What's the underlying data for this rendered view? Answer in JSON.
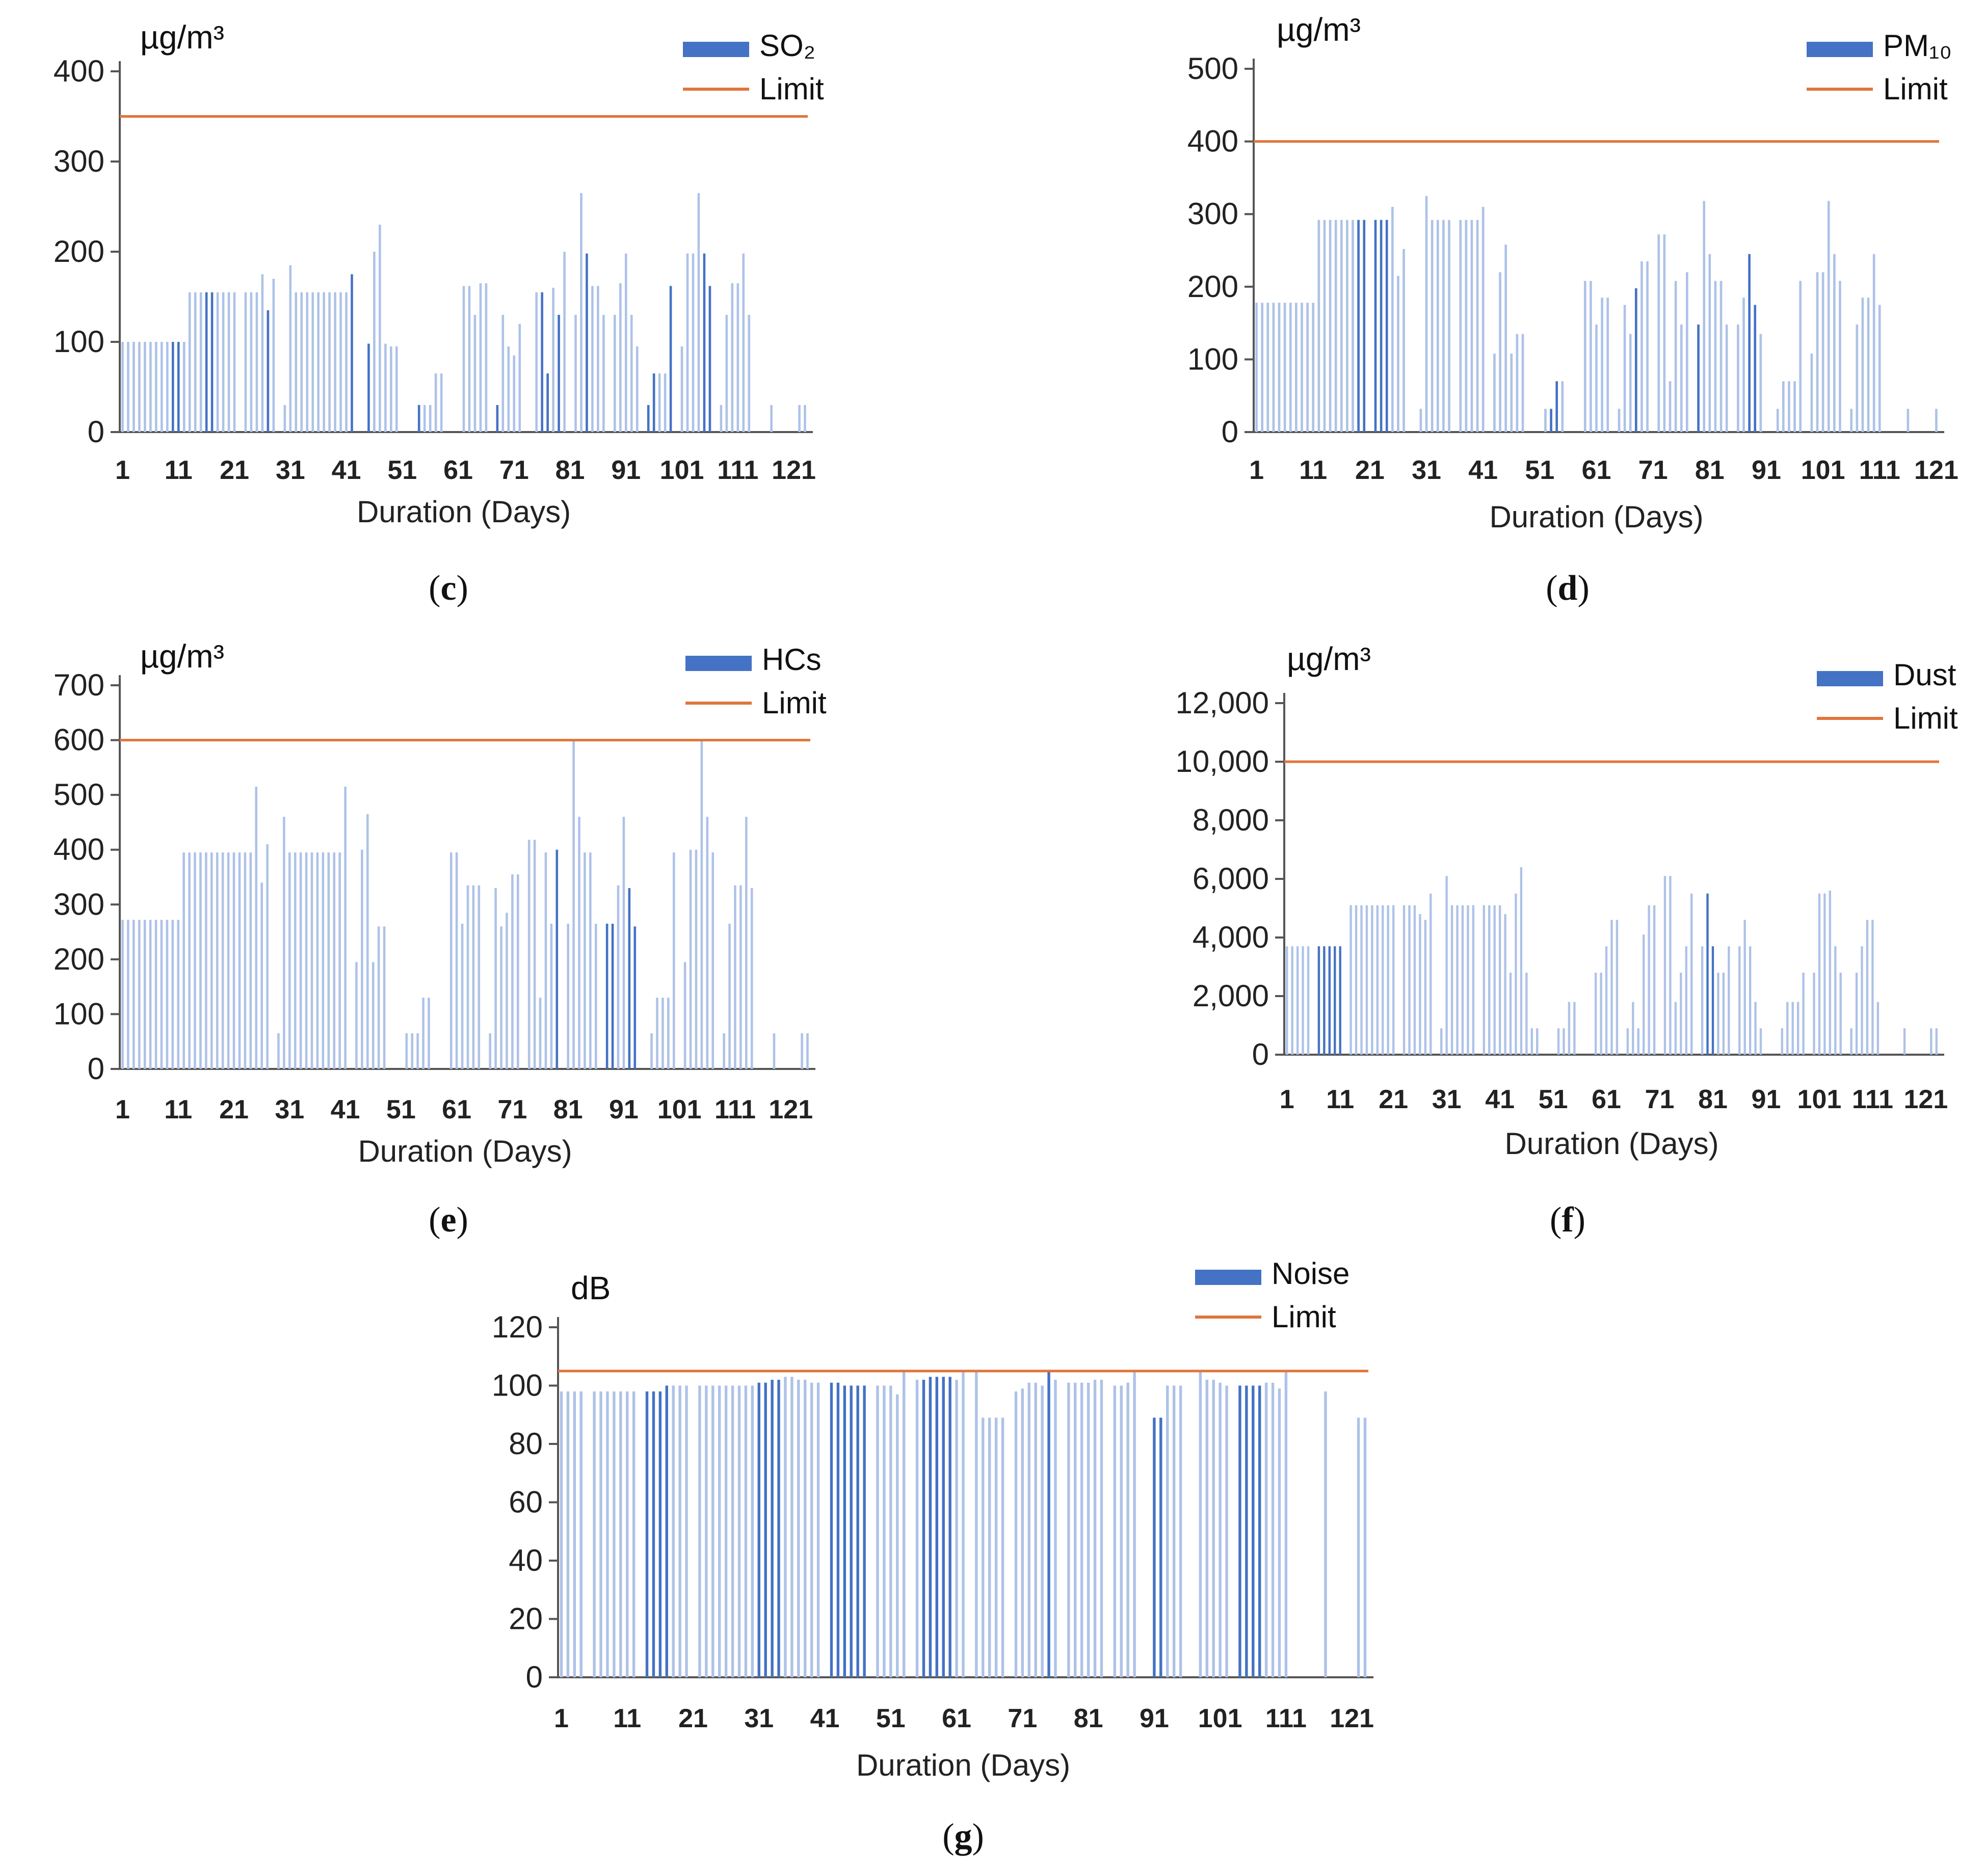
{
  "colors": {
    "bar_dark": "#4472c4",
    "bar_light": "#aec2e8",
    "limit": "#e0753b",
    "axis": "#555555"
  },
  "chart_data": [
    {
      "panel": "c",
      "type": "bar",
      "unit": "µg/m³",
      "series_name": "SO₂",
      "limit_label": "Limit",
      "limit": 350,
      "ylim": [
        0,
        400
      ],
      "yticks": [
        "0",
        "100",
        "200",
        "300",
        "400"
      ],
      "ytick_values": [
        0,
        100,
        200,
        300,
        400
      ],
      "xlabel": "Duration (Days)",
      "xticks": [
        "1",
        "11",
        "21",
        "31",
        "41",
        "51",
        "61",
        "71",
        "81",
        "91",
        "101",
        "111",
        "121"
      ],
      "values": [
        100,
        100,
        100,
        100,
        100,
        100,
        100,
        100,
        100,
        100,
        100,
        100,
        155,
        155,
        155,
        155,
        155,
        155,
        155,
        155,
        155,
        0,
        155,
        155,
        155,
        175,
        135,
        170,
        0,
        30,
        185,
        155,
        155,
        155,
        155,
        155,
        155,
        155,
        155,
        155,
        155,
        175,
        0,
        0,
        98,
        200,
        230,
        98,
        95,
        95,
        0,
        0,
        0,
        30,
        30,
        30,
        65,
        65,
        0,
        0,
        0,
        162,
        162,
        130,
        165,
        165,
        0,
        30,
        130,
        95,
        85,
        120,
        0,
        0,
        155,
        155,
        65,
        160,
        130,
        200,
        0,
        130,
        265,
        198,
        162,
        162,
        130,
        0,
        130,
        165,
        198,
        130,
        95,
        0,
        30,
        65,
        65,
        65,
        162,
        0,
        95,
        198,
        198,
        265,
        198,
        162,
        0,
        30,
        130,
        165,
        165,
        198,
        130,
        0,
        0,
        0,
        30,
        0,
        0,
        0,
        0,
        30,
        30
      ],
      "dark_days": [
        10,
        11,
        16,
        17,
        27,
        42,
        44,
        45,
        53,
        54,
        67,
        68,
        76,
        77,
        79,
        84,
        95,
        96,
        99,
        105,
        106
      ]
    },
    {
      "panel": "d",
      "type": "bar",
      "unit": "µg/m³",
      "series_name": "PM₁₀",
      "limit_label": "Limit",
      "limit": 400,
      "ylim": [
        0,
        500
      ],
      "yticks": [
        "0",
        "100",
        "200",
        "300",
        "400",
        "500"
      ],
      "ytick_values": [
        0,
        100,
        200,
        300,
        400,
        500
      ],
      "xlabel": "Duration (Days)",
      "xticks": [
        "1",
        "11",
        "21",
        "31",
        "41",
        "51",
        "61",
        "71",
        "81",
        "91",
        "101",
        "111",
        "121"
      ],
      "values": [
        178,
        178,
        178,
        178,
        178,
        178,
        178,
        178,
        178,
        178,
        178,
        292,
        292,
        292,
        292,
        292,
        292,
        292,
        292,
        292,
        0,
        292,
        292,
        292,
        310,
        215,
        252,
        0,
        0,
        32,
        325,
        292,
        292,
        292,
        292,
        0,
        292,
        292,
        292,
        292,
        310,
        0,
        108,
        220,
        258,
        108,
        135,
        135,
        0,
        0,
        0,
        32,
        32,
        70,
        70,
        0,
        0,
        0,
        208,
        208,
        148,
        185,
        185,
        0,
        32,
        175,
        135,
        198,
        235,
        235,
        0,
        272,
        272,
        70,
        208,
        148,
        220,
        0,
        148,
        318,
        245,
        208,
        208,
        148,
        0,
        148,
        185,
        245,
        175,
        135,
        0,
        0,
        32,
        70,
        70,
        70,
        208,
        0,
        108,
        220,
        220,
        318,
        245,
        208,
        0,
        32,
        148,
        185,
        185,
        245,
        175,
        0,
        0,
        0,
        0,
        32,
        0,
        0,
        0,
        0,
        32
      ],
      "dark_days": [
        19,
        20,
        21,
        22,
        23,
        24,
        53,
        54,
        58,
        68,
        79,
        88,
        89
      ]
    },
    {
      "panel": "e",
      "type": "bar",
      "unit": "µg/m³",
      "series_name": "HCs",
      "limit_label": "Limit",
      "limit": 600,
      "ylim": [
        0,
        700
      ],
      "yticks": [
        "0",
        "100",
        "200",
        "300",
        "400",
        "500",
        "600",
        "700"
      ],
      "ytick_values": [
        0,
        100,
        200,
        300,
        400,
        500,
        600,
        700
      ],
      "xlabel": "Duration (Days)",
      "xticks": [
        "1",
        "11",
        "21",
        "31",
        "41",
        "51",
        "61",
        "71",
        "81",
        "91",
        "101",
        "111",
        "121"
      ],
      "values": [
        272,
        272,
        272,
        272,
        272,
        272,
        272,
        272,
        272,
        272,
        272,
        395,
        395,
        395,
        395,
        395,
        395,
        395,
        395,
        395,
        395,
        395,
        395,
        395,
        515,
        340,
        410,
        0,
        65,
        460,
        395,
        395,
        395,
        395,
        395,
        395,
        395,
        395,
        395,
        395,
        515,
        0,
        195,
        400,
        465,
        195,
        260,
        260,
        0,
        0,
        0,
        65,
        65,
        65,
        130,
        130,
        0,
        0,
        0,
        395,
        395,
        265,
        335,
        335,
        335,
        0,
        65,
        330,
        260,
        285,
        355,
        355,
        0,
        418,
        418,
        130,
        395,
        265,
        400,
        0,
        265,
        600,
        460,
        395,
        395,
        265,
        0,
        265,
        265,
        335,
        460,
        330,
        260,
        0,
        0,
        65,
        130,
        130,
        130,
        395,
        0,
        195,
        400,
        400,
        600,
        460,
        395,
        0,
        65,
        265,
        335,
        335,
        460,
        330,
        0,
        0,
        0,
        65,
        0,
        0,
        0,
        0,
        65,
        65
      ],
      "dark_days": [
        73,
        79,
        80,
        88,
        89,
        92,
        93,
        94
      ]
    },
    {
      "panel": "f",
      "type": "bar",
      "unit": "µg/m³",
      "series_name": "Dust",
      "limit_label": "Limit",
      "limit": 10000,
      "ylim": [
        0,
        12000
      ],
      "yticks": [
        "0",
        "2,000",
        "4,000",
        "6,000",
        "8,000",
        "10,000",
        "12,000"
      ],
      "ytick_values": [
        0,
        2000,
        4000,
        6000,
        8000,
        10000,
        12000
      ],
      "xlabel": "Duration (Days)",
      "xticks": [
        "1",
        "11",
        "21",
        "31",
        "41",
        "51",
        "61",
        "71",
        "81",
        "91",
        "101",
        "111",
        "121"
      ],
      "values": [
        3700,
        3700,
        3700,
        3700,
        3700,
        0,
        3700,
        3700,
        3700,
        3700,
        3700,
        0,
        5100,
        5100,
        5100,
        5100,
        5100,
        5100,
        5100,
        5100,
        5100,
        0,
        5100,
        5100,
        5100,
        4800,
        4600,
        5500,
        0,
        900,
        6100,
        5100,
        5100,
        5100,
        5100,
        5100,
        0,
        5100,
        5100,
        5100,
        5100,
        4800,
        2800,
        5500,
        6400,
        2800,
        900,
        900,
        0,
        0,
        0,
        900,
        900,
        1800,
        1800,
        0,
        0,
        0,
        2800,
        2800,
        3700,
        4600,
        4600,
        0,
        900,
        1800,
        900,
        4100,
        5100,
        5100,
        0,
        6100,
        6100,
        1800,
        2800,
        3700,
        5500,
        0,
        3700,
        5500,
        3700,
        2800,
        2800,
        3700,
        0,
        3700,
        4600,
        3700,
        1800,
        900,
        0,
        0,
        0,
        900,
        1800,
        1800,
        1800,
        2800,
        0,
        2800,
        5500,
        5500,
        5600,
        3700,
        2800,
        0,
        900,
        2800,
        3700,
        4600,
        4600,
        1800,
        0,
        0,
        0,
        0,
        900,
        0,
        0,
        0,
        0,
        900,
        900
      ],
      "dark_days": [
        7,
        8,
        9,
        10,
        11,
        57,
        58,
        80,
        81
      ]
    },
    {
      "panel": "g",
      "type": "bar",
      "unit": "dB",
      "series_name": "Noise",
      "limit_label": "Limit",
      "limit": 105,
      "ylim": [
        0,
        120
      ],
      "yticks": [
        "0",
        "20",
        "40",
        "60",
        "80",
        "100",
        "120"
      ],
      "ytick_values": [
        0,
        20,
        40,
        60,
        80,
        100,
        120
      ],
      "xlabel": "Duration (Days)",
      "xticks": [
        "1",
        "11",
        "21",
        "31",
        "41",
        "51",
        "61",
        "71",
        "81",
        "91",
        "101",
        "111",
        "121"
      ],
      "values": [
        98,
        98,
        98,
        98,
        0,
        98,
        98,
        98,
        98,
        98,
        98,
        98,
        0,
        98,
        98,
        98,
        100,
        100,
        100,
        100,
        0,
        100,
        100,
        100,
        100,
        100,
        100,
        100,
        100,
        100,
        101,
        101,
        102,
        102,
        103,
        103,
        102,
        102,
        101,
        101,
        0,
        101,
        101,
        100,
        100,
        100,
        100,
        0,
        100,
        100,
        100,
        97,
        105,
        0,
        102,
        102,
        103,
        103,
        103,
        103,
        102,
        105,
        0,
        105,
        89,
        89,
        89,
        89,
        0,
        98,
        99,
        101,
        101,
        100,
        105,
        102,
        0,
        101,
        101,
        101,
        101,
        102,
        102,
        0,
        100,
        100,
        101,
        105,
        0,
        0,
        89,
        89,
        100,
        100,
        100,
        0,
        0,
        105,
        102,
        102,
        101,
        100,
        0,
        100,
        100,
        100,
        100,
        101,
        101,
        99,
        105,
        0,
        0,
        0,
        0,
        0,
        98,
        0,
        0,
        0,
        0,
        89,
        89
      ],
      "dark_days": [
        13,
        14,
        15,
        16,
        17,
        31,
        32,
        33,
        34,
        42,
        43,
        44,
        45,
        46,
        47,
        56,
        57,
        58,
        59,
        60,
        75,
        91,
        92,
        103,
        104,
        105,
        106,
        107,
        120,
        121
      ]
    }
  ],
  "captions": {
    "c": "c",
    "d": "d",
    "e": "e",
    "f": "f",
    "g": "g"
  }
}
